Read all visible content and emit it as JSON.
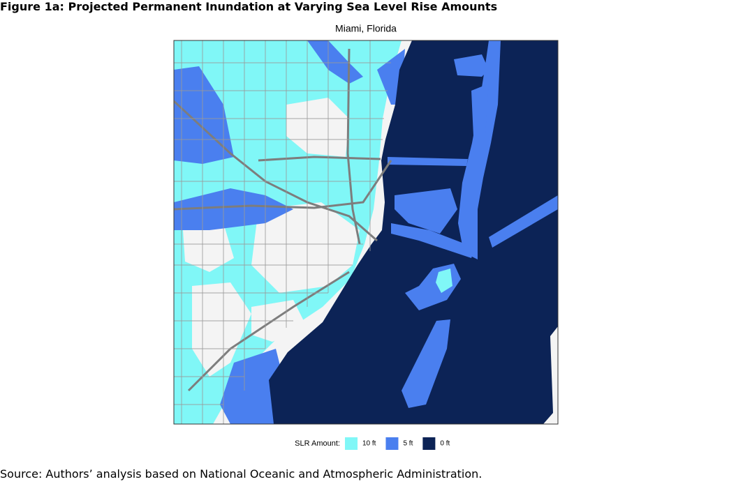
{
  "figure_title": "Figure 1a: Projected Permanent Inundation at Varying Sea Level Rise Amounts",
  "map": {
    "title": "Miami, Florida",
    "legend": {
      "title": "SLR Amount:",
      "items": [
        {
          "label": "10 ft",
          "color": "#80f7f7"
        },
        {
          "label": "5 ft",
          "color": "#4a7fef"
        },
        {
          "label": "0 ft",
          "color": "#0c2356"
        }
      ]
    }
  },
  "source": "Source: Authors’ analysis based on National Oceanic and Atmospheric Administration."
}
